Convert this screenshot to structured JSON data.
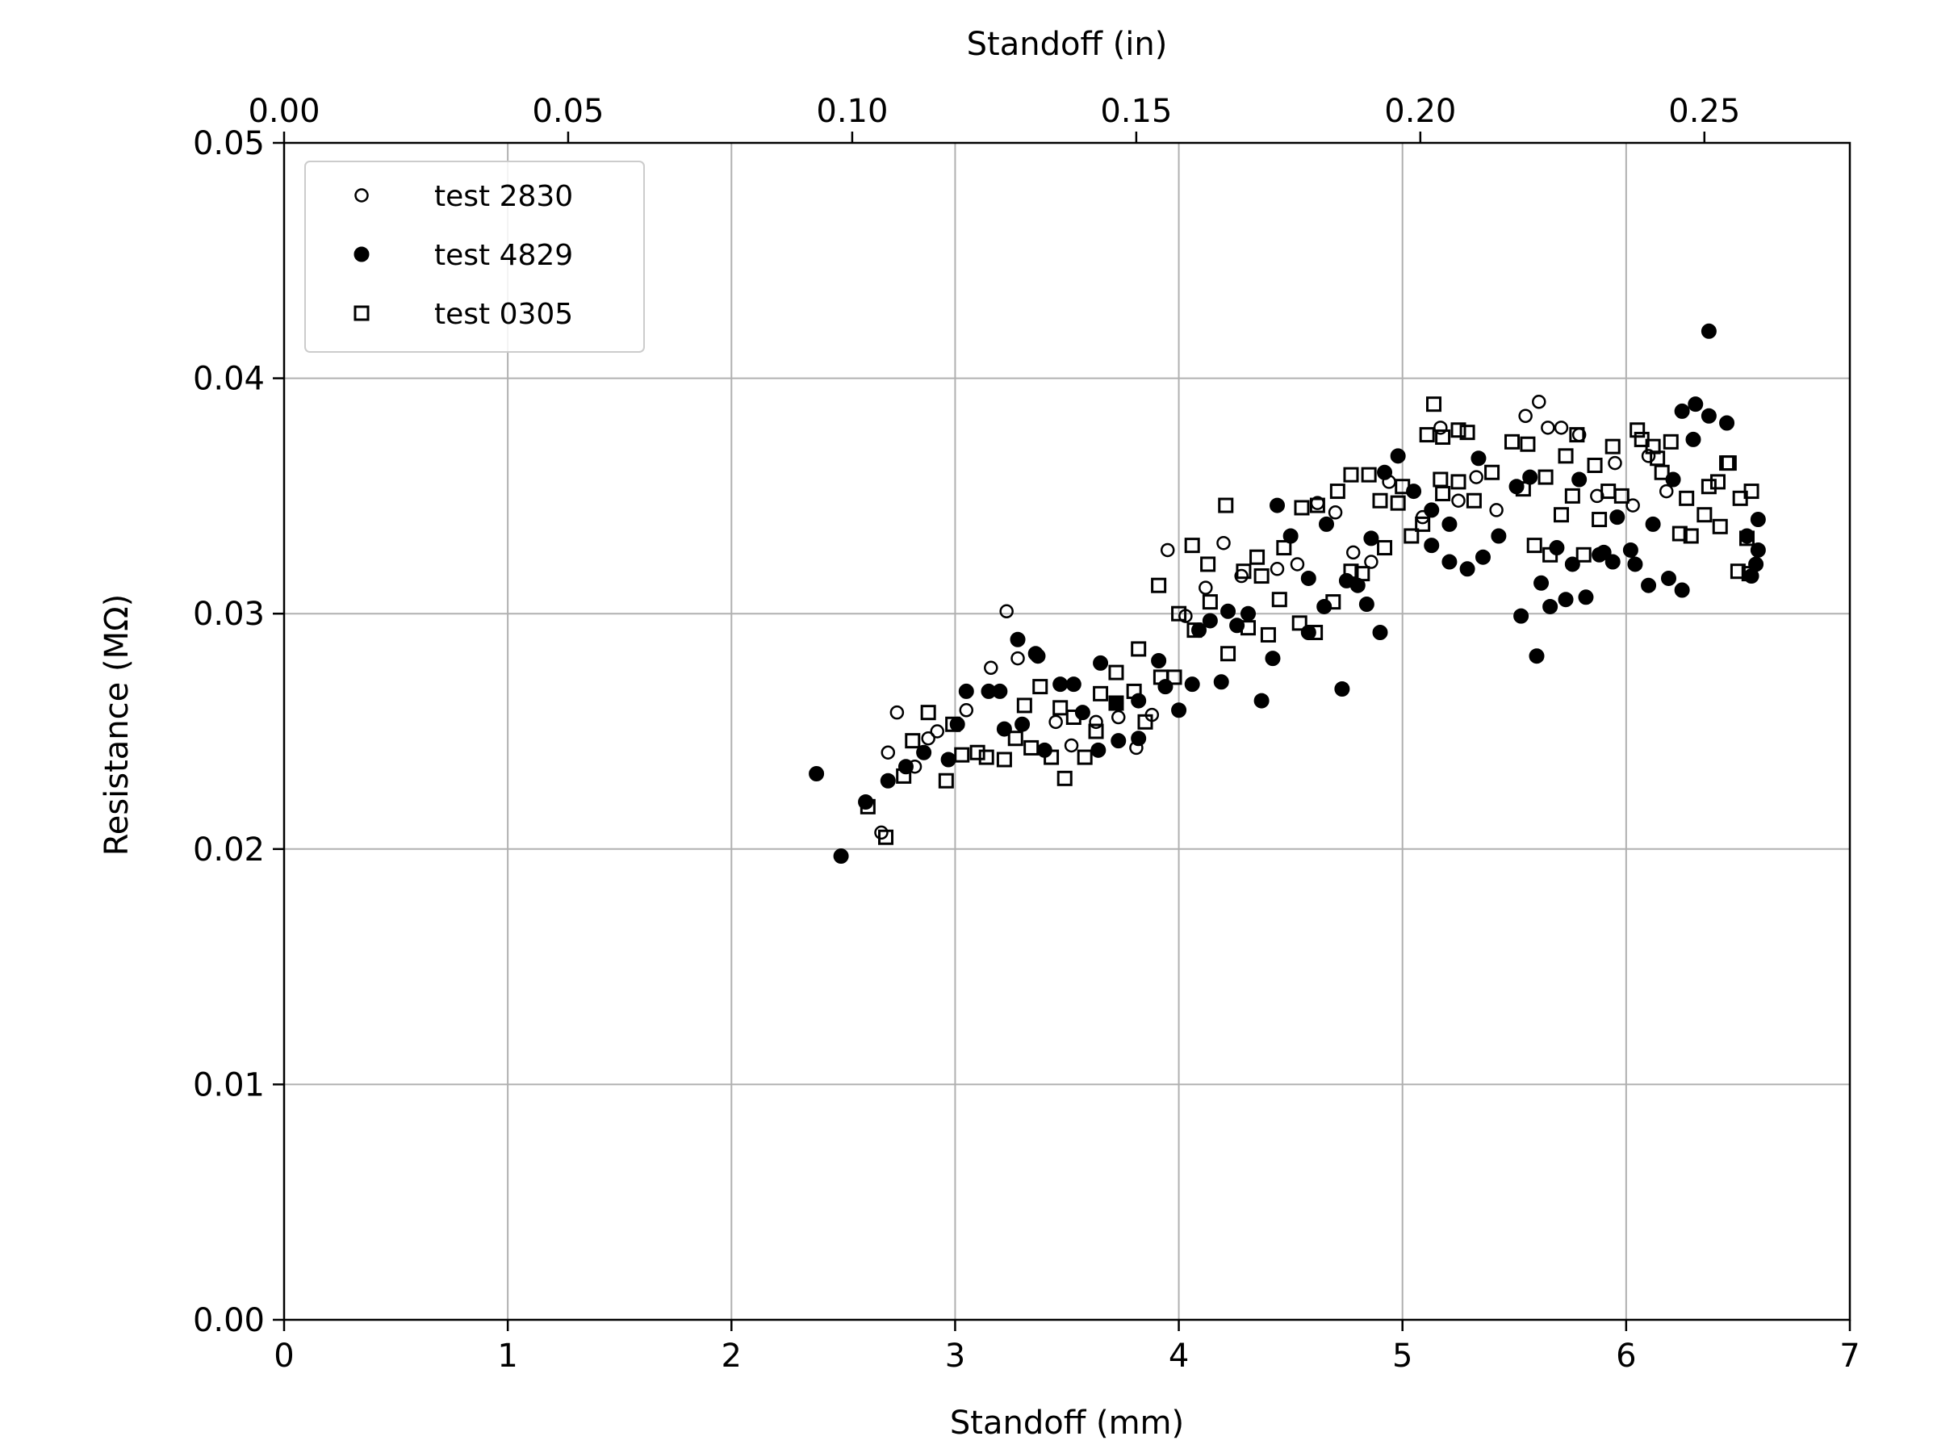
{
  "chart_data": {
    "type": "scatter",
    "xlabel": "Standoff (mm)",
    "x2label": "Standoff (in)",
    "ylabel": "Resistance (MΩ)",
    "xlim": [
      0,
      7
    ],
    "x2lim": [
      0,
      0.2756
    ],
    "ylim": [
      0,
      0.05
    ],
    "x_ticks": [
      "0",
      "1",
      "2",
      "3",
      "4",
      "5",
      "6",
      "7"
    ],
    "x2_ticks": [
      "0.00",
      "0.05",
      "0.10",
      "0.15",
      "0.20",
      "0.25"
    ],
    "y_ticks": [
      "0.00",
      "0.01",
      "0.02",
      "0.03",
      "0.04",
      "0.05"
    ],
    "grid": true,
    "legend_position": "top-left",
    "series": [
      {
        "name": "test 2830",
        "marker": "open-circle",
        "points": [
          [
            2.67,
            0.0207
          ],
          [
            2.7,
            0.0241
          ],
          [
            2.74,
            0.0258
          ],
          [
            2.82,
            0.0235
          ],
          [
            2.88,
            0.0247
          ],
          [
            2.92,
            0.025
          ],
          [
            3.05,
            0.0259
          ],
          [
            3.16,
            0.0277
          ],
          [
            3.23,
            0.0301
          ],
          [
            3.28,
            0.0281
          ],
          [
            3.45,
            0.0254
          ],
          [
            3.52,
            0.0244
          ],
          [
            3.63,
            0.0254
          ],
          [
            3.73,
            0.0256
          ],
          [
            3.81,
            0.0243
          ],
          [
            3.88,
            0.0257
          ],
          [
            3.95,
            0.0327
          ],
          [
            4.03,
            0.0299
          ],
          [
            4.12,
            0.0311
          ],
          [
            4.2,
            0.033
          ],
          [
            4.28,
            0.0316
          ],
          [
            4.44,
            0.0319
          ],
          [
            4.53,
            0.0321
          ],
          [
            4.62,
            0.0347
          ],
          [
            4.7,
            0.0343
          ],
          [
            4.78,
            0.0326
          ],
          [
            4.86,
            0.0322
          ],
          [
            4.94,
            0.0356
          ],
          [
            5.09,
            0.0341
          ],
          [
            5.17,
            0.0379
          ],
          [
            5.25,
            0.0348
          ],
          [
            5.33,
            0.0358
          ],
          [
            5.42,
            0.0344
          ],
          [
            5.55,
            0.0384
          ],
          [
            5.61,
            0.039
          ],
          [
            5.65,
            0.0379
          ],
          [
            5.71,
            0.0379
          ],
          [
            5.79,
            0.0376
          ],
          [
            5.87,
            0.035
          ],
          [
            5.95,
            0.0364
          ],
          [
            6.03,
            0.0346
          ],
          [
            6.1,
            0.0367
          ],
          [
            6.18,
            0.0352
          ]
        ]
      },
      {
        "name": "test 4829",
        "marker": "filled-circle",
        "points": [
          [
            2.38,
            0.0232
          ],
          [
            2.49,
            0.0197
          ],
          [
            2.6,
            0.022
          ],
          [
            2.7,
            0.0229
          ],
          [
            2.78,
            0.0235
          ],
          [
            2.86,
            0.0241
          ],
          [
            2.97,
            0.0238
          ],
          [
            3.01,
            0.0253
          ],
          [
            3.05,
            0.0267
          ],
          [
            3.15,
            0.0267
          ],
          [
            3.2,
            0.0267
          ],
          [
            3.22,
            0.0251
          ],
          [
            3.28,
            0.0289
          ],
          [
            3.3,
            0.0253
          ],
          [
            3.36,
            0.0283
          ],
          [
            3.37,
            0.0282
          ],
          [
            3.4,
            0.0242
          ],
          [
            3.47,
            0.027
          ],
          [
            3.53,
            0.027
          ],
          [
            3.57,
            0.0258
          ],
          [
            3.64,
            0.0242
          ],
          [
            3.65,
            0.0279
          ],
          [
            3.72,
            0.0262
          ],
          [
            3.73,
            0.0246
          ],
          [
            3.82,
            0.0247
          ],
          [
            3.82,
            0.0263
          ],
          [
            3.91,
            0.028
          ],
          [
            3.94,
            0.0269
          ],
          [
            4.0,
            0.0259
          ],
          [
            4.06,
            0.027
          ],
          [
            4.09,
            0.0293
          ],
          [
            4.14,
            0.0297
          ],
          [
            4.19,
            0.0271
          ],
          [
            4.22,
            0.0301
          ],
          [
            4.26,
            0.0295
          ],
          [
            4.31,
            0.03
          ],
          [
            4.37,
            0.0263
          ],
          [
            4.42,
            0.0281
          ],
          [
            4.44,
            0.0346
          ],
          [
            4.5,
            0.0333
          ],
          [
            4.58,
            0.0315
          ],
          [
            4.58,
            0.0292
          ],
          [
            4.65,
            0.0303
          ],
          [
            4.66,
            0.0338
          ],
          [
            4.73,
            0.0268
          ],
          [
            4.75,
            0.0314
          ],
          [
            4.8,
            0.0312
          ],
          [
            4.84,
            0.0304
          ],
          [
            4.86,
            0.0332
          ],
          [
            4.9,
            0.0292
          ],
          [
            4.92,
            0.036
          ],
          [
            4.98,
            0.0367
          ],
          [
            5.05,
            0.0352
          ],
          [
            5.13,
            0.0344
          ],
          [
            5.13,
            0.0329
          ],
          [
            5.21,
            0.0322
          ],
          [
            5.21,
            0.0338
          ],
          [
            5.29,
            0.0319
          ],
          [
            5.34,
            0.0366
          ],
          [
            5.36,
            0.0324
          ],
          [
            5.43,
            0.0333
          ],
          [
            5.51,
            0.0354
          ],
          [
            5.53,
            0.0299
          ],
          [
            5.57,
            0.0358
          ],
          [
            5.6,
            0.0282
          ],
          [
            5.62,
            0.0313
          ],
          [
            5.66,
            0.0303
          ],
          [
            5.69,
            0.0328
          ],
          [
            5.73,
            0.0306
          ],
          [
            5.76,
            0.0321
          ],
          [
            5.79,
            0.0357
          ],
          [
            5.82,
            0.0307
          ],
          [
            5.88,
            0.0325
          ],
          [
            5.9,
            0.0326
          ],
          [
            5.94,
            0.0322
          ],
          [
            5.96,
            0.0341
          ],
          [
            6.02,
            0.0327
          ],
          [
            6.04,
            0.0321
          ],
          [
            6.1,
            0.0312
          ],
          [
            6.12,
            0.0338
          ],
          [
            6.19,
            0.0315
          ],
          [
            6.21,
            0.0357
          ],
          [
            6.25,
            0.031
          ],
          [
            6.25,
            0.0386
          ],
          [
            6.3,
            0.0374
          ],
          [
            6.31,
            0.0389
          ],
          [
            6.37,
            0.042
          ],
          [
            6.37,
            0.0384
          ],
          [
            6.45,
            0.0381
          ],
          [
            6.54,
            0.0333
          ],
          [
            6.56,
            0.0316
          ],
          [
            6.58,
            0.0321
          ],
          [
            6.59,
            0.034
          ],
          [
            6.59,
            0.0327
          ]
        ]
      },
      {
        "name": "test 0305",
        "marker": "open-square",
        "points": [
          [
            2.61,
            0.0218
          ],
          [
            2.69,
            0.0205
          ],
          [
            2.77,
            0.0231
          ],
          [
            2.81,
            0.0246
          ],
          [
            2.88,
            0.0258
          ],
          [
            2.96,
            0.0229
          ],
          [
            2.99,
            0.0253
          ],
          [
            3.03,
            0.024
          ],
          [
            3.1,
            0.0241
          ],
          [
            3.14,
            0.0239
          ],
          [
            3.22,
            0.0238
          ],
          [
            3.27,
            0.0247
          ],
          [
            3.31,
            0.0261
          ],
          [
            3.34,
            0.0243
          ],
          [
            3.38,
            0.0269
          ],
          [
            3.43,
            0.0239
          ],
          [
            3.47,
            0.026
          ],
          [
            3.49,
            0.023
          ],
          [
            3.53,
            0.0256
          ],
          [
            3.58,
            0.0239
          ],
          [
            3.63,
            0.025
          ],
          [
            3.65,
            0.0266
          ],
          [
            3.72,
            0.0275
          ],
          [
            3.72,
            0.0262
          ],
          [
            3.8,
            0.0267
          ],
          [
            3.82,
            0.0285
          ],
          [
            3.85,
            0.0254
          ],
          [
            3.91,
            0.0312
          ],
          [
            3.92,
            0.0273
          ],
          [
            3.98,
            0.0273
          ],
          [
            4.0,
            0.03
          ],
          [
            4.06,
            0.0329
          ],
          [
            4.07,
            0.0293
          ],
          [
            4.13,
            0.0321
          ],
          [
            4.14,
            0.0305
          ],
          [
            4.21,
            0.0346
          ],
          [
            4.22,
            0.0283
          ],
          [
            4.29,
            0.0318
          ],
          [
            4.31,
            0.0294
          ],
          [
            4.35,
            0.0324
          ],
          [
            4.37,
            0.0316
          ],
          [
            4.4,
            0.0291
          ],
          [
            4.45,
            0.0306
          ],
          [
            4.47,
            0.0328
          ],
          [
            4.54,
            0.0296
          ],
          [
            4.55,
            0.0345
          ],
          [
            4.61,
            0.0292
          ],
          [
            4.62,
            0.0346
          ],
          [
            4.69,
            0.0305
          ],
          [
            4.71,
            0.0352
          ],
          [
            4.77,
            0.0318
          ],
          [
            4.77,
            0.0359
          ],
          [
            4.82,
            0.0317
          ],
          [
            4.85,
            0.0359
          ],
          [
            4.9,
            0.0348
          ],
          [
            4.92,
            0.0328
          ],
          [
            4.98,
            0.0347
          ],
          [
            5.0,
            0.0354
          ],
          [
            5.04,
            0.0333
          ],
          [
            5.09,
            0.0338
          ],
          [
            5.11,
            0.0376
          ],
          [
            5.14,
            0.0389
          ],
          [
            5.17,
            0.0357
          ],
          [
            5.18,
            0.0375
          ],
          [
            5.18,
            0.0351
          ],
          [
            5.25,
            0.0356
          ],
          [
            5.25,
            0.0378
          ],
          [
            5.29,
            0.0377
          ],
          [
            5.32,
            0.0348
          ],
          [
            5.4,
            0.036
          ],
          [
            5.49,
            0.0373
          ],
          [
            5.54,
            0.0353
          ],
          [
            5.56,
            0.0372
          ],
          [
            5.59,
            0.0329
          ],
          [
            5.64,
            0.0358
          ],
          [
            5.66,
            0.0325
          ],
          [
            5.71,
            0.0342
          ],
          [
            5.73,
            0.0367
          ],
          [
            5.76,
            0.035
          ],
          [
            5.78,
            0.0376
          ],
          [
            5.81,
            0.0325
          ],
          [
            5.86,
            0.0363
          ],
          [
            5.88,
            0.034
          ],
          [
            5.92,
            0.0352
          ],
          [
            5.94,
            0.0371
          ],
          [
            5.98,
            0.035
          ],
          [
            6.05,
            0.0378
          ],
          [
            6.07,
            0.0374
          ],
          [
            6.12,
            0.0371
          ],
          [
            6.14,
            0.0366
          ],
          [
            6.16,
            0.036
          ],
          [
            6.2,
            0.0373
          ],
          [
            6.24,
            0.0334
          ],
          [
            6.27,
            0.0349
          ],
          [
            6.29,
            0.0333
          ],
          [
            6.35,
            0.0342
          ],
          [
            6.37,
            0.0354
          ],
          [
            6.41,
            0.0356
          ],
          [
            6.42,
            0.0337
          ],
          [
            6.45,
            0.0364
          ],
          [
            6.46,
            0.0364
          ],
          [
            6.5,
            0.0318
          ],
          [
            6.51,
            0.0349
          ],
          [
            6.54,
            0.0332
          ],
          [
            6.55,
            0.0317
          ],
          [
            6.56,
            0.0352
          ]
        ]
      }
    ]
  }
}
